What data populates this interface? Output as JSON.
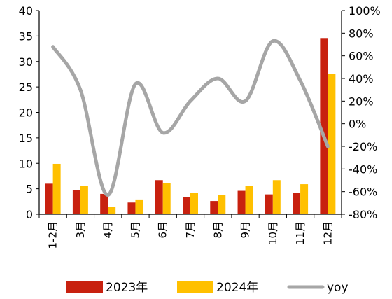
{
  "chart_data": {
    "type": "bar",
    "categories": [
      "1-2月",
      "3月",
      "4月",
      "5月",
      "6月",
      "7月",
      "8月",
      "9月",
      "10月",
      "11月",
      "12月"
    ],
    "series": [
      {
        "name": "2023年",
        "type": "bar",
        "axis": "left",
        "color": "#C8210F",
        "values": [
          6.0,
          4.7,
          4.0,
          2.3,
          6.7,
          3.3,
          2.6,
          4.6,
          3.9,
          4.2,
          34.6
        ]
      },
      {
        "name": "2024年",
        "type": "bar",
        "axis": "left",
        "color": "#FFC000",
        "values": [
          9.9,
          5.6,
          1.4,
          2.9,
          6.1,
          4.2,
          3.8,
          5.6,
          6.7,
          5.9,
          27.6
        ]
      },
      {
        "name": "yoy",
        "type": "line",
        "axis": "right",
        "color": "#A6A6A6",
        "values": [
          68,
          30,
          -63,
          35,
          -8,
          20,
          40,
          20,
          73,
          38,
          -20
        ]
      }
    ],
    "y_left": {
      "min": 0,
      "max": 40,
      "ticks": [
        "0",
        "5",
        "10",
        "15",
        "20",
        "25",
        "30",
        "35",
        "40"
      ]
    },
    "y_right": {
      "min": -80,
      "max": 100,
      "ticks": [
        "-80%",
        "-60%",
        "-40%",
        "-20%",
        "0%",
        "20%",
        "40%",
        "60%",
        "80%",
        "100%"
      ]
    },
    "title": "",
    "xlabel": "",
    "ylabel": "",
    "grid": false,
    "legend_position": "bottom"
  }
}
